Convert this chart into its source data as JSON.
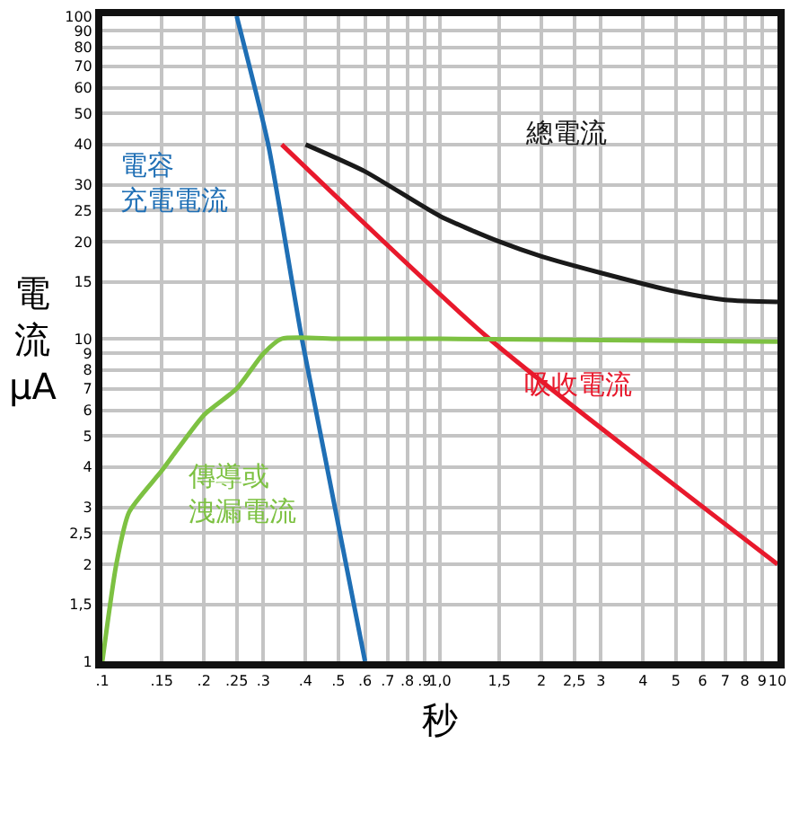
{
  "chart_data": {
    "type": "line",
    "xlabel": "秒",
    "ylabel": "電流μA",
    "log": "xy",
    "grid": true,
    "legend": false,
    "marker": "none",
    "line_style": "solid",
    "xlim": [
      0.1,
      10
    ],
    "ylim": [
      1,
      100
    ],
    "xticks": [
      {
        "value": 0.1,
        "label": ".1"
      },
      {
        "value": 0.15,
        "label": ".15"
      },
      {
        "value": 0.2,
        "label": ".2"
      },
      {
        "value": 0.25,
        "label": ".25"
      },
      {
        "value": 0.3,
        "label": ".3"
      },
      {
        "value": 0.4,
        "label": ".4"
      },
      {
        "value": 0.5,
        "label": ".5"
      },
      {
        "value": 0.6,
        "label": ".6"
      },
      {
        "value": 0.7,
        "label": ".7"
      },
      {
        "value": 0.8,
        "label": ".8"
      },
      {
        "value": 0.9,
        "label": ".9"
      },
      {
        "value": 1,
        "label": "1,0"
      },
      {
        "value": 1.5,
        "label": "1,5"
      },
      2,
      {
        "value": 2.5,
        "label": "2,5"
      },
      3,
      4,
      5,
      6,
      7,
      8,
      9,
      10
    ],
    "yticks": [
      1,
      {
        "value": 1.5,
        "label": "1,5"
      },
      2,
      {
        "value": 2.5,
        "label": "2,5"
      },
      3,
      4,
      5,
      6,
      7,
      8,
      9,
      10,
      15,
      20,
      25,
      30,
      40,
      50,
      60,
      70,
      80,
      90,
      100
    ],
    "series": [
      {
        "name": "電容充電電流",
        "color": "#1f6fb5",
        "x": [
          0.25,
          0.31,
          0.39,
          0.6
        ],
        "values": [
          100,
          40,
          10,
          1
        ]
      },
      {
        "name": "總電流",
        "color": "#1a1a1a",
        "x": [
          0.4,
          0.6,
          1,
          1.5,
          2,
          3,
          5,
          7,
          10
        ],
        "values": [
          40,
          33,
          24,
          20,
          18,
          16,
          14,
          13.2,
          13
        ]
      },
      {
        "name": "吸收電流",
        "color": "#e8192c",
        "x": [
          0.34,
          1.4,
          10
        ],
        "values": [
          40,
          10,
          2
        ]
      },
      {
        "name": "傳導或洩漏電流",
        "color": "#7dc142",
        "x": [
          0.1,
          0.11,
          0.12,
          0.15,
          0.2,
          0.25,
          0.3,
          0.34,
          0.5,
          1,
          3,
          10
        ],
        "values": [
          1,
          2,
          2.9,
          3.9,
          5.8,
          7,
          9,
          10,
          10,
          10,
          9.9,
          9.8
        ]
      }
    ]
  }
}
